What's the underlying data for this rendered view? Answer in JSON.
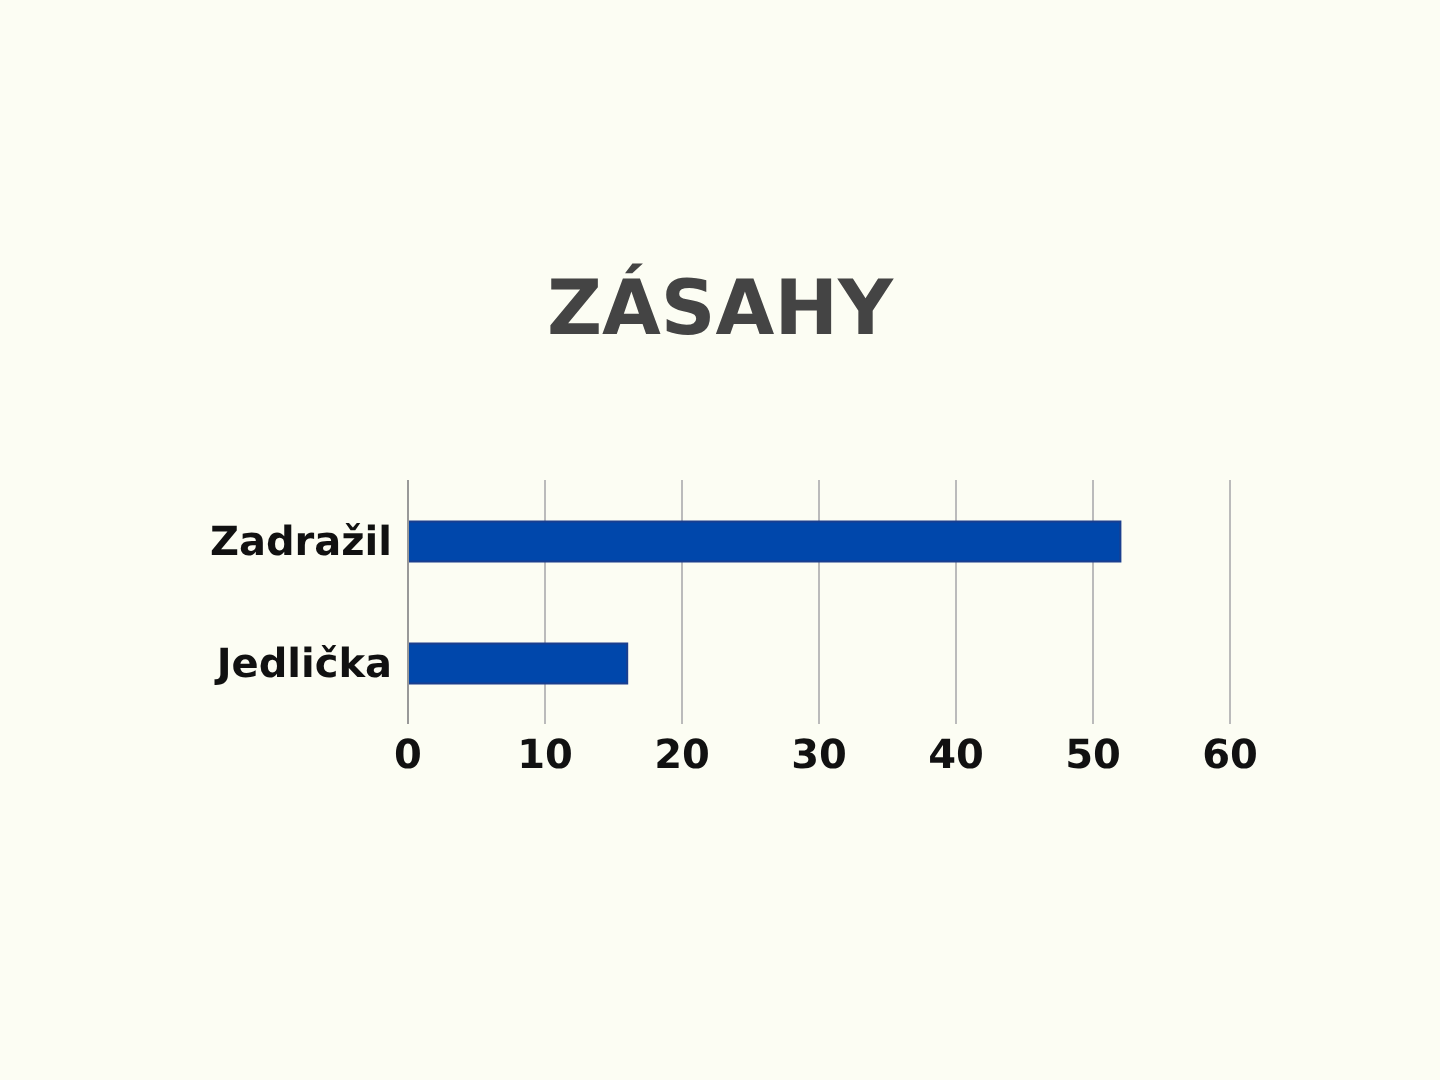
{
  "chart_data": {
    "type": "bar",
    "orientation": "horizontal",
    "title": "ZÁSAHY",
    "categories": [
      "Zadražil",
      "Jedlička"
    ],
    "values": [
      52,
      16
    ],
    "color": "#0047ab",
    "xlim": [
      0,
      60
    ],
    "xticks": [
      0,
      10,
      20,
      30,
      40,
      50,
      60
    ],
    "grid": "x"
  }
}
